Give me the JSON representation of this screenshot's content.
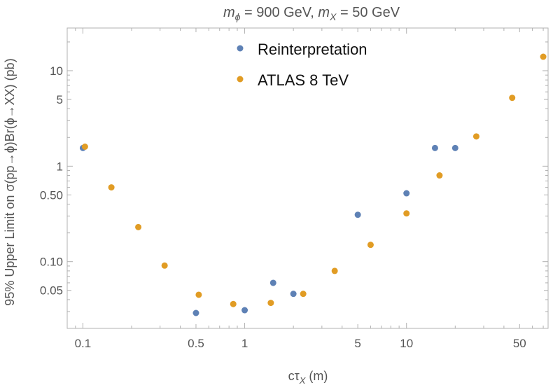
{
  "chart_data": {
    "type": "scatter",
    "title_parts": {
      "m1": "m",
      "m1_sub": "ϕ",
      "m1_val": " = 900 GeV, ",
      "m2": "m",
      "m2_sub": "X",
      "m2_val": " = 50 GeV"
    },
    "xlabel_parts": {
      "main": "cτ",
      "sub": "X",
      "unit": " (m)"
    },
    "ylabel": "95% Upper Limit on σ(pp→ϕ)Br(ϕ→XX) (pb)",
    "x_scale": "log",
    "y_scale": "log",
    "xlim": [
      0.08,
      75
    ],
    "ylim": [
      0.02,
      28
    ],
    "x_ticks": [
      {
        "value": 0.1,
        "label": "0.1"
      },
      {
        "value": 0.5,
        "label": "0.5"
      },
      {
        "value": 1,
        "label": "1"
      },
      {
        "value": 5,
        "label": "5"
      },
      {
        "value": 10,
        "label": "10"
      },
      {
        "value": 50,
        "label": "50"
      }
    ],
    "y_ticks": [
      {
        "value": 0.05,
        "label": "0.05"
      },
      {
        "value": 0.1,
        "label": "0.10"
      },
      {
        "value": 0.5,
        "label": "0.50"
      },
      {
        "value": 1,
        "label": "1"
      },
      {
        "value": 5,
        "label": "5"
      },
      {
        "value": 10,
        "label": "10"
      }
    ],
    "legend_position": "top-center",
    "series": [
      {
        "name": "Reinterpretation",
        "color": "#5e81b5",
        "points": [
          {
            "x": 0.1,
            "y": 1.55
          },
          {
            "x": 0.5,
            "y": 0.029
          },
          {
            "x": 1.0,
            "y": 0.031
          },
          {
            "x": 1.5,
            "y": 0.06
          },
          {
            "x": 2.0,
            "y": 0.046
          },
          {
            "x": 5.0,
            "y": 0.31
          },
          {
            "x": 10.0,
            "y": 0.52
          },
          {
            "x": 15.0,
            "y": 1.55
          },
          {
            "x": 20.0,
            "y": 1.55
          }
        ]
      },
      {
        "name": "ATLAS 8 TeV",
        "color": "#e19c24",
        "points": [
          {
            "x": 0.103,
            "y": 1.6
          },
          {
            "x": 0.15,
            "y": 0.6
          },
          {
            "x": 0.22,
            "y": 0.23
          },
          {
            "x": 0.32,
            "y": 0.091
          },
          {
            "x": 0.52,
            "y": 0.045
          },
          {
            "x": 0.85,
            "y": 0.036
          },
          {
            "x": 1.45,
            "y": 0.037
          },
          {
            "x": 2.3,
            "y": 0.046
          },
          {
            "x": 3.6,
            "y": 0.08
          },
          {
            "x": 6.0,
            "y": 0.15
          },
          {
            "x": 10.0,
            "y": 0.32
          },
          {
            "x": 16.0,
            "y": 0.8
          },
          {
            "x": 27.0,
            "y": 2.05
          },
          {
            "x": 45.0,
            "y": 5.2
          },
          {
            "x": 70.0,
            "y": 14.0
          }
        ]
      }
    ]
  }
}
